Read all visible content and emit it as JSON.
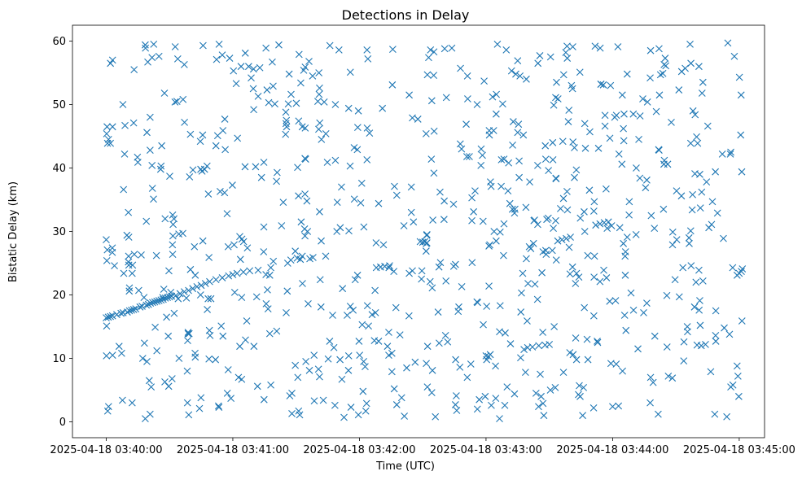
{
  "chart_data": {
    "type": "scatter",
    "title": "Detections in Delay",
    "xlabel": "Time (UTC)",
    "ylabel": "Bistatic Delay (km)",
    "marker": "x",
    "color": "#1f77b4",
    "xlim_seconds_since_0340": [
      -16,
      312
    ],
    "ylim": [
      -2.5,
      62.5
    ],
    "x_ticks": [
      {
        "t": 0,
        "label": "2025-04-18 03:40:00"
      },
      {
        "t": 60,
        "label": "2025-04-18 03:41:00"
      },
      {
        "t": 120,
        "label": "2025-04-18 03:42:00"
      },
      {
        "t": 180,
        "label": "2025-04-18 03:43:00"
      },
      {
        "t": 240,
        "label": "2025-04-18 03:44:00"
      },
      {
        "t": 300,
        "label": "2025-04-18 03:45:00"
      }
    ],
    "y_ticks": [
      0,
      10,
      20,
      30,
      40,
      50,
      60
    ],
    "grid": false,
    "series": [
      {
        "name": "detections",
        "track_points": [
          [
            0,
            16.4
          ],
          [
            1,
            16.5
          ],
          [
            2,
            16.6
          ],
          [
            3,
            16.7
          ],
          [
            5,
            16.9
          ],
          [
            7,
            17.1
          ],
          [
            8,
            17.2
          ],
          [
            10,
            17.3
          ],
          [
            11,
            17.5
          ],
          [
            12,
            17.6
          ],
          [
            13,
            17.7
          ],
          [
            14,
            17.8
          ],
          [
            16,
            18.1
          ],
          [
            17,
            18.2
          ],
          [
            19,
            18.4
          ],
          [
            20,
            18.5
          ],
          [
            21,
            18.7
          ],
          [
            22,
            18.8
          ],
          [
            23,
            18.9
          ],
          [
            24,
            19.0
          ],
          [
            25,
            19.1
          ],
          [
            26,
            19.2
          ],
          [
            27,
            19.3
          ],
          [
            28,
            19.5
          ],
          [
            29,
            19.6
          ],
          [
            30,
            19.7
          ],
          [
            31,
            19.8
          ],
          [
            33,
            19.9
          ],
          [
            35,
            20.2
          ],
          [
            37,
            20.5
          ],
          [
            39,
            20.7
          ],
          [
            41,
            21.0
          ],
          [
            43,
            21.3
          ],
          [
            45,
            21.5
          ],
          [
            47,
            21.8
          ],
          [
            49,
            22.1
          ],
          [
            52,
            22.4
          ],
          [
            55,
            22.7
          ],
          [
            58,
            23.0
          ],
          [
            60,
            23.2
          ],
          [
            62,
            23.4
          ],
          [
            65,
            23.6
          ],
          [
            68,
            23.8
          ],
          [
            72,
            23.9
          ],
          [
            78,
            24.3
          ],
          [
            86,
            25.0
          ],
          [
            92,
            25.6
          ],
          [
            98,
            25.9
          ],
          [
            104,
            26.1
          ],
          [
            112,
            21.0
          ],
          [
            118,
            22.4
          ],
          [
            128,
            24.3
          ],
          [
            130,
            24.4
          ],
          [
            132,
            24.5
          ],
          [
            134,
            24.3
          ],
          [
            150,
            28.3
          ],
          [
            151,
            28.4
          ],
          [
            152,
            28.2
          ],
          [
            180,
            10.4
          ],
          [
            182,
            10.6
          ],
          [
            198,
            11.4
          ],
          [
            202,
            11.8
          ],
          [
            205,
            12.0
          ],
          [
            208,
            12.1
          ],
          [
            210,
            12.2
          ],
          [
            214,
            28.5
          ],
          [
            216,
            28.7
          ],
          [
            218,
            28.9
          ],
          [
            220,
            29.1
          ],
          [
            232,
            31.0
          ],
          [
            234,
            31.2
          ],
          [
            236,
            31.4
          ],
          [
            238,
            31.5
          ],
          [
            280,
            12.1
          ],
          [
            282,
            12.0
          ],
          [
            284,
            12.2
          ],
          [
            299,
            23.1
          ],
          [
            300,
            23.4
          ],
          [
            301,
            23.7
          ],
          [
            296,
            5.5
          ],
          [
            297,
            5.8
          ],
          [
            2,
            56.5
          ],
          [
            3,
            57.0
          ],
          [
            55,
            57.8
          ],
          [
            124,
            57.2
          ],
          [
            258,
            58.5
          ],
          [
            262,
            58.8
          ]
        ],
        "random_seed": 7,
        "random_points_count": 760,
        "random_t_range": [
          0,
          302
        ],
        "random_delay_range": [
          0.5,
          59.7
        ]
      }
    ]
  }
}
